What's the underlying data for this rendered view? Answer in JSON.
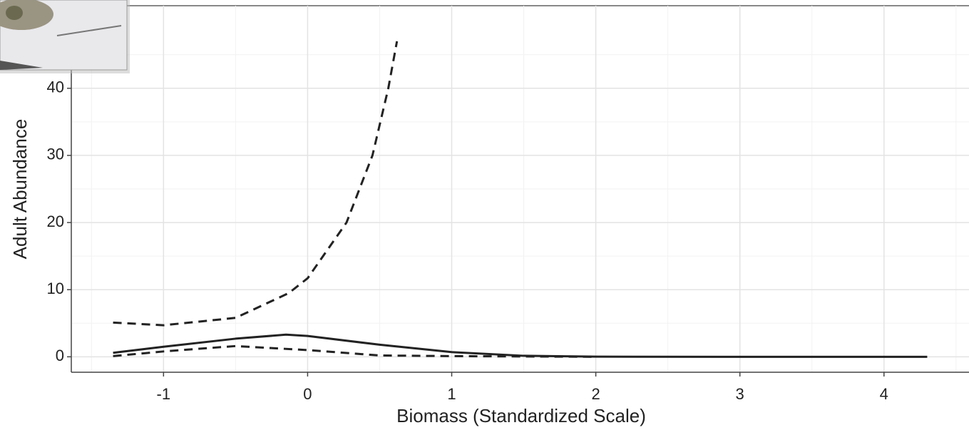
{
  "chart_data": {
    "type": "line",
    "x_label": "Biomass (Standardized Scale)",
    "y_label": "Adult Abundance",
    "xlim": [
      -1.64,
      4.59
    ],
    "ylim": [
      -2.3,
      52.3
    ],
    "xticks": [
      -1,
      0,
      1,
      2,
      3,
      4
    ],
    "yticks": [
      0,
      10,
      20,
      30,
      40
    ],
    "grid": true,
    "minor_grid": true,
    "series": [
      {
        "color": "#222222",
        "style": "solid",
        "x": [
          -1.35,
          -1,
          -0.5,
          -0.15,
          0,
          0.5,
          1,
          1.5,
          2,
          3,
          4.3
        ],
        "values": [
          0.6,
          1.5,
          2.7,
          3.3,
          3.1,
          1.8,
          0.7,
          0.15,
          0.02,
          0,
          0
        ]
      },
      {
        "color": "#222222",
        "style": "dashed",
        "x": [
          -1.35,
          -1,
          -0.5,
          -0.13,
          0,
          0.27,
          0.45,
          0.56,
          0.62
        ],
        "values": [
          5.1,
          4.7,
          5.8,
          9.5,
          11.7,
          20,
          30,
          40,
          47
        ]
      },
      {
        "color": "#222222",
        "style": "dashed",
        "x": [
          -1.35,
          -1,
          -0.5,
          0,
          0.5,
          1,
          1.5,
          2
        ],
        "values": [
          0.1,
          0.8,
          1.6,
          1.0,
          0.2,
          0.1,
          0.05,
          0
        ]
      }
    ]
  }
}
